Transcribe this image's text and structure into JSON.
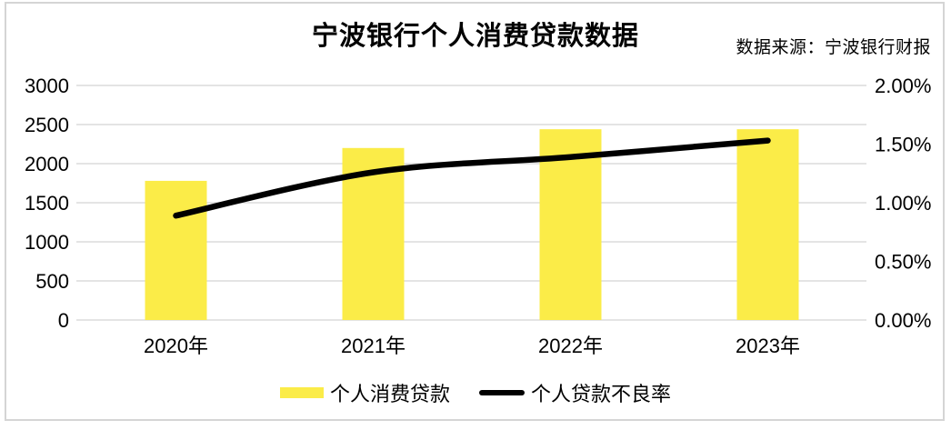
{
  "chart_data": {
    "type": "combo-bar-line",
    "title": "宁波银行个人消费贷款数据",
    "source": "数据来源：宁波银行财报",
    "categories": [
      "2020年",
      "2021年",
      "2022年",
      "2023年"
    ],
    "series": [
      {
        "name": "个人消费贷款",
        "chart": "bar",
        "axis": "left",
        "values": [
          1780,
          2200,
          2440,
          2440
        ],
        "color": "#fbec48"
      },
      {
        "name": "个人贷款不良率",
        "chart": "line",
        "axis": "right",
        "values": [
          0.89,
          1.26,
          1.39,
          1.53
        ],
        "unit": "%",
        "color": "#000000"
      }
    ],
    "left_axis": {
      "min": 0,
      "max": 3000,
      "step": 500,
      "tick_labels": [
        "3000",
        "2500",
        "2000",
        "1500",
        "1000",
        "500",
        "0"
      ]
    },
    "right_axis": {
      "min": 0,
      "max": 2,
      "step": 0.5,
      "tick_labels": [
        "2.00%",
        "1.50%",
        "1.00%",
        "0.50%",
        "0.00%"
      ]
    },
    "grid": true,
    "legend_position": "bottom",
    "colors": {
      "grid": "#dbdbdb",
      "text": "#000000",
      "border": "#d5d5d5",
      "background": "#ffffff"
    }
  }
}
